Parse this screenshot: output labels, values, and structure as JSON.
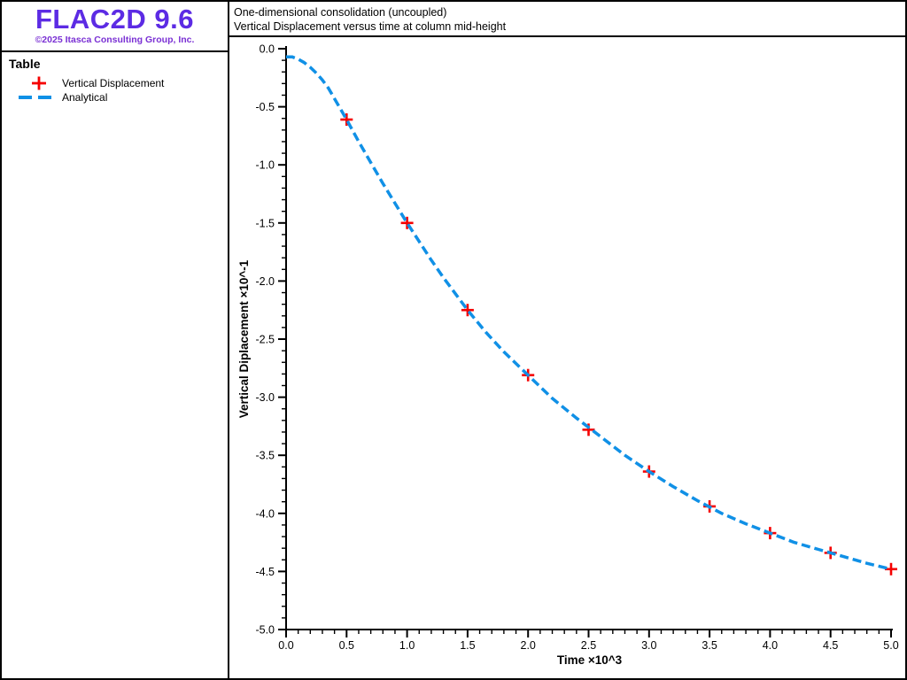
{
  "app": {
    "logo": "FLAC2D 9.6",
    "copyright": "©2025 Itasca Consulting Group, Inc.",
    "colors": {
      "logo": "#5c2be4",
      "copyright": "#7a30d4",
      "border": "#000000"
    }
  },
  "sidebar": {
    "section_title": "Table",
    "legend": [
      {
        "label": "Vertical Displacement",
        "marker": "plus",
        "color": "#f50000"
      },
      {
        "label": "Analytical",
        "marker": "dashed-line",
        "color": "#1090e6"
      }
    ]
  },
  "header": {
    "title_line1": "One-dimensional consolidation (uncoupled)",
    "title_line2": "Vertical Displacement versus time at column mid-height"
  },
  "chart_data": {
    "type": "line",
    "title": "One-dimensional consolidation (uncoupled)",
    "subtitle": "Vertical Displacement versus time at column mid-height",
    "xlabel": "Time ×10^3",
    "ylabel": "Vertical Diplacement ×10^-1",
    "xlim": [
      0.0,
      5.0
    ],
    "ylim": [
      -5.0,
      0.0
    ],
    "grid": false,
    "legend_position": "left-sidebar",
    "x_tick_labels": [
      "0.0",
      "0.5",
      "1.0",
      "1.5",
      "2.0",
      "2.5",
      "3.0",
      "3.5",
      "4.0",
      "4.5",
      "5.0"
    ],
    "y_tick_labels": [
      "0.0",
      "-0.5",
      "-1.0",
      "-1.5",
      "-2.0",
      "-2.5",
      "-3.0",
      "-3.5",
      "-4.0",
      "-4.5",
      "-5.0"
    ],
    "minor_tick_step": 0.1,
    "series": [
      {
        "name": "Vertical Displacement",
        "type": "scatter",
        "marker": "plus",
        "color": "#f50000",
        "x": [
          0.5,
          1.0,
          1.5,
          2.0,
          2.5,
          3.0,
          3.5,
          4.0,
          4.5,
          5.0
        ],
        "y": [
          -0.61,
          -1.5,
          -2.25,
          -2.81,
          -3.28,
          -3.64,
          -3.94,
          -4.17,
          -4.34,
          -4.48
        ]
      },
      {
        "name": "Analytical",
        "type": "line",
        "line_style": "dashed",
        "color": "#1090e6",
        "x": [
          0,
          0.05,
          0.1,
          0.15,
          0.2,
          0.25,
          0.3,
          0.35,
          0.4,
          0.45,
          0.5,
          0.6,
          0.7,
          0.8,
          0.9,
          1.0,
          1.1,
          1.2,
          1.3,
          1.4,
          1.5,
          1.65,
          1.8,
          2.0,
          2.2,
          2.4,
          2.6,
          2.8,
          3.0,
          3.2,
          3.4,
          3.6,
          3.8,
          4.0,
          4.2,
          4.4,
          4.6,
          4.8,
          5.0
        ],
        "y": [
          -0.07,
          -0.07,
          -0.09,
          -0.12,
          -0.16,
          -0.21,
          -0.27,
          -0.34,
          -0.43,
          -0.52,
          -0.61,
          -0.8,
          -0.98,
          -1.16,
          -1.33,
          -1.5,
          -1.66,
          -1.82,
          -1.97,
          -2.11,
          -2.25,
          -2.44,
          -2.61,
          -2.81,
          -3.01,
          -3.18,
          -3.34,
          -3.5,
          -3.64,
          -3.77,
          -3.89,
          -4.0,
          -4.09,
          -4.17,
          -4.25,
          -4.31,
          -4.37,
          -4.43,
          -4.48
        ]
      }
    ]
  }
}
